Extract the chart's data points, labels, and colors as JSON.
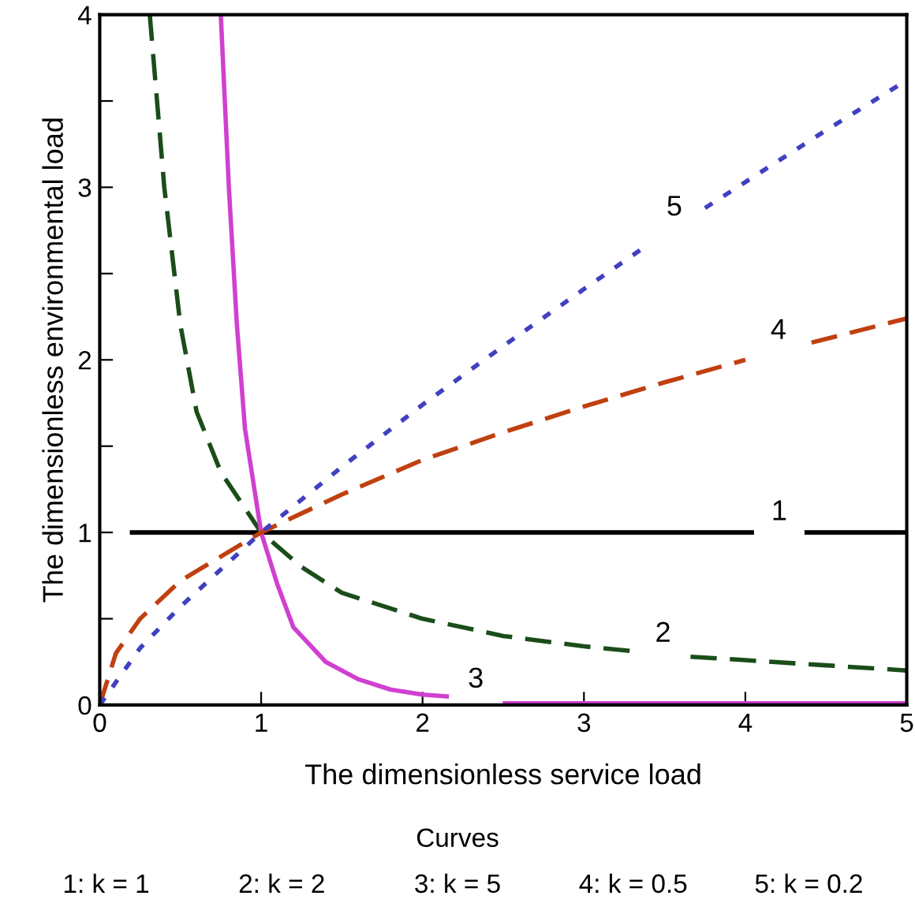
{
  "chart_data": {
    "type": "line",
    "xlabel": "The dimensionless service load",
    "ylabel": "The dimensionless environmental load",
    "xlim": [
      0,
      5
    ],
    "ylim": [
      0,
      4
    ],
    "xticks": [
      0,
      1,
      2,
      3,
      4,
      5
    ],
    "yticks": [
      0,
      {
        "value": 0.5,
        "label": null
      },
      1,
      {
        "value": 1.5,
        "label": null
      },
      2,
      {
        "value": 2.5,
        "label": null
      },
      3,
      {
        "value": 3.5,
        "label": null
      },
      4
    ],
    "grid": false,
    "series": [
      {
        "name": "1",
        "color": "#000000",
        "line_style": "solid",
        "x": [
          0.2,
          4.04,
          4.2,
          4.38,
          5
        ],
        "values": [
          1,
          1,
          null,
          1,
          1
        ]
      },
      {
        "name": "2",
        "color": "#1a4d1a",
        "line_style": "dashed",
        "x": [
          0.31,
          0.4,
          0.5,
          0.6,
          0.75,
          1,
          1.25,
          1.5,
          2,
          2.5,
          3,
          3.32,
          3.5,
          3.66,
          4,
          4.5,
          5
        ],
        "values": [
          4,
          3.0,
          2.2,
          1.7,
          1.35,
          1,
          0.8,
          0.65,
          0.5,
          0.4,
          0.34,
          0.31,
          null,
          0.28,
          0.26,
          0.23,
          0.2
        ]
      },
      {
        "name": "3",
        "color": "#d040d0",
        "line_style": "solid",
        "x": [
          0.75,
          0.8,
          0.85,
          0.9,
          1,
          1.1,
          1.2,
          1.4,
          1.6,
          1.8,
          2,
          2.15,
          2.3,
          2.51,
          3,
          4,
          5
        ],
        "values": [
          4,
          3.0,
          2.2,
          1.6,
          1,
          0.7,
          0.45,
          0.25,
          0.15,
          0.09,
          0.06,
          0.05,
          null,
          0.01,
          0.01,
          0.01,
          0.01
        ]
      },
      {
        "name": "4",
        "color": "#c04010",
        "line_style": "dashed",
        "x": [
          0,
          0.1,
          0.25,
          0.5,
          1,
          1.5,
          2,
          2.5,
          3,
          3.5,
          4,
          4.2,
          4.41,
          5
        ],
        "values": [
          0,
          0.3,
          0.5,
          0.72,
          1,
          1.22,
          1.42,
          1.58,
          1.73,
          1.87,
          2,
          null,
          2.1,
          2.24
        ]
      },
      {
        "name": "5",
        "color": "#4040c0",
        "line_style": "dotted",
        "x": [
          0,
          0.25,
          0.5,
          1,
          1.5,
          2,
          2.5,
          3,
          3.37,
          3.5,
          3.75,
          4,
          4.5,
          5
        ],
        "values": [
          0,
          0.33,
          0.57,
          1,
          1.38,
          1.74,
          2.08,
          2.41,
          2.65,
          null,
          2.88,
          3.03,
          3.33,
          3.62
        ]
      }
    ],
    "annotations": [
      "Curves",
      "1: k = 1",
      "2: k = 2",
      "3: k = 5",
      "4: k = 0.5",
      "5: k = 0.2"
    ]
  }
}
